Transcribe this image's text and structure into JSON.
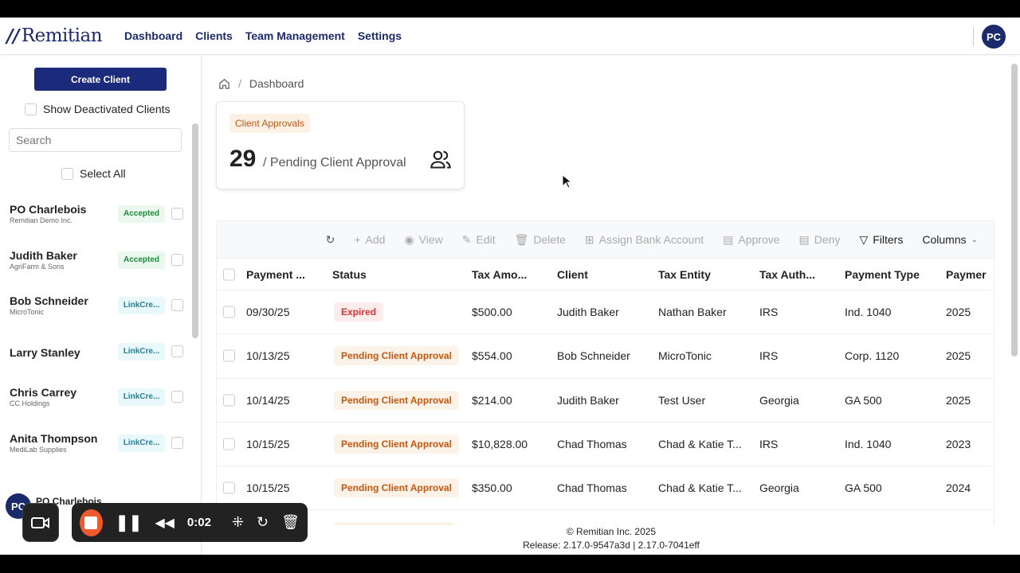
{
  "header": {
    "logo": "Remitian",
    "nav": [
      "Dashboard",
      "Clients",
      "Team Management",
      "Settings"
    ],
    "avatar": "PC"
  },
  "sidebar": {
    "create_label": "Create Client",
    "show_deactivated": "Show Deactivated Clients",
    "search_placeholder": "Search",
    "select_all": "Select All",
    "clients": [
      {
        "name": "PO Charlebois",
        "company": "Remitian Demo Inc.",
        "status": "Accepted",
        "kind": "acc"
      },
      {
        "name": "Judith Baker",
        "company": "AgriFarm & Sons",
        "status": "Accepted",
        "kind": "acc"
      },
      {
        "name": "Bob Schneider",
        "company": "MicroTonic",
        "status": "LinkCre...",
        "kind": "link"
      },
      {
        "name": "Larry Stanley",
        "company": "",
        "status": "LinkCre...",
        "kind": "link"
      },
      {
        "name": "Chris Carrey",
        "company": "CC Holdings",
        "status": "LinkCre...",
        "kind": "link"
      },
      {
        "name": "Anita Thompson",
        "company": "MediLab Supplies",
        "status": "LinkCre...",
        "kind": "link"
      }
    ],
    "user": {
      "avatar": "PC",
      "name": "PO Charlebois"
    }
  },
  "breadcrumb": {
    "current": "Dashboard"
  },
  "card": {
    "tag": "Client Approvals",
    "count": "29",
    "label": "/ Pending Client Approval"
  },
  "toolbar": {
    "refresh": "",
    "add": "Add",
    "view": "View",
    "edit": "Edit",
    "delete": "Delete",
    "assign": "Assign Bank Account",
    "approve": "Approve",
    "deny": "Deny",
    "filters": "Filters",
    "columns": "Columns"
  },
  "table": {
    "columns": [
      "Payment ...",
      "Status",
      "Tax Amo...",
      "Client",
      "Tax Entity",
      "Tax Auth...",
      "Payment Type",
      "Paymer"
    ],
    "rows": [
      [
        "09/30/25",
        "Expired",
        "$500.00",
        "Judith Baker",
        "Nathan Baker",
        "IRS",
        "Ind. 1040",
        "2025"
      ],
      [
        "10/13/25",
        "Pending Client Approval",
        "$554.00",
        "Bob Schneider",
        "MicroTonic",
        "IRS",
        "Corp. 1120",
        "2025"
      ],
      [
        "10/14/25",
        "Pending Client Approval",
        "$214.00",
        "Judith Baker",
        "Test User",
        "Georgia",
        "GA 500",
        "2025"
      ],
      [
        "10/15/25",
        "Pending Client Approval",
        "$10,828.00",
        "Chad Thomas",
        "Chad & Katie T...",
        "IRS",
        "Ind. 1040",
        "2023"
      ],
      [
        "10/15/25",
        "Pending Client Approval",
        "$350.00",
        "Chad Thomas",
        "Chad & Katie T...",
        "Georgia",
        "GA 500",
        "2024"
      ]
    ]
  },
  "footer": {
    "copyright": "© Remitian Inc. 2025",
    "release": "Release: 2.17.0-9547a3d | 2.17.0-7041eff"
  },
  "recorder": {
    "time": "0:02"
  }
}
